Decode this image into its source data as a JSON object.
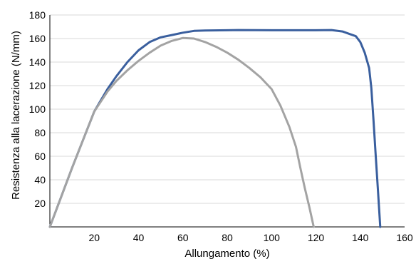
{
  "chart_data": {
    "type": "line",
    "title": "",
    "xlabel": "Allungamento (%)",
    "ylabel": "Resistenza alla lacerazione (N/mm)",
    "xlim": [
      0,
      160
    ],
    "ylim": [
      0,
      180
    ],
    "x_ticks": [
      20,
      40,
      60,
      80,
      100,
      120,
      140,
      160
    ],
    "y_ticks": [
      20,
      40,
      60,
      80,
      100,
      120,
      140,
      160,
      180
    ],
    "grid": "horizontal",
    "legend": "none",
    "series": [
      {
        "color": "#3a5f9e",
        "points": [
          [
            0,
            0
          ],
          [
            10,
            50
          ],
          [
            20,
            98
          ],
          [
            26,
            117
          ],
          [
            30,
            128
          ],
          [
            35,
            140
          ],
          [
            40,
            150
          ],
          [
            45,
            157
          ],
          [
            50,
            161
          ],
          [
            55,
            163
          ],
          [
            60,
            165
          ],
          [
            65,
            166.5
          ],
          [
            70,
            166.8
          ],
          [
            80,
            167
          ],
          [
            85,
            167.2
          ],
          [
            100,
            167
          ],
          [
            110,
            167
          ],
          [
            120,
            167
          ],
          [
            127,
            167.2
          ],
          [
            132,
            166
          ],
          [
            135,
            164
          ],
          [
            138,
            162
          ],
          [
            140,
            157
          ],
          [
            142,
            148
          ],
          [
            144,
            135
          ],
          [
            145,
            118
          ],
          [
            146,
            90
          ],
          [
            147,
            60
          ],
          [
            148,
            30
          ],
          [
            149,
            0
          ]
        ]
      },
      {
        "color": "#a3a3a3",
        "points": [
          [
            0,
            0
          ],
          [
            10,
            50
          ],
          [
            20,
            98
          ],
          [
            26,
            115
          ],
          [
            30,
            124
          ],
          [
            35,
            133
          ],
          [
            40,
            141
          ],
          [
            45,
            148
          ],
          [
            50,
            154
          ],
          [
            55,
            158
          ],
          [
            60,
            160.5
          ],
          [
            65,
            160
          ],
          [
            70,
            157
          ],
          [
            75,
            153
          ],
          [
            80,
            148
          ],
          [
            85,
            142
          ],
          [
            90,
            135
          ],
          [
            95,
            127
          ],
          [
            100,
            117
          ],
          [
            104,
            103
          ],
          [
            108,
            85
          ],
          [
            111,
            68
          ],
          [
            113,
            50
          ],
          [
            115,
            33
          ],
          [
            117,
            17
          ],
          [
            119,
            0
          ]
        ]
      }
    ]
  }
}
